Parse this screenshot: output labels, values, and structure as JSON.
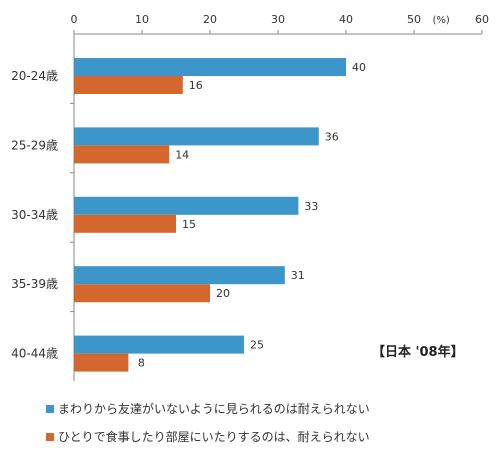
{
  "chart_data": {
    "type": "bar",
    "orientation": "horizontal",
    "categories": [
      "20-24歳",
      "25-29歳",
      "30-34歳",
      "35-39歳",
      "40-44歳"
    ],
    "series": [
      {
        "name": "まわりから友達がいないように見られるのは耐えられない",
        "color": "#3c96c9",
        "values": [
          40,
          36,
          33,
          31,
          25
        ]
      },
      {
        "name": "ひとりで食事したり部屋にいたりするのは、耐えられない",
        "color": "#d3672e",
        "values": [
          16,
          14,
          15,
          20,
          8
        ]
      }
    ],
    "x_ticks": [
      "0",
      "10",
      "20",
      "30",
      "40",
      "50",
      "60"
    ],
    "unit_label": "(%)",
    "xlim": [
      0,
      60
    ],
    "grid": false,
    "legend_position": "bottom-left",
    "annotation": "【日本 '08年】"
  }
}
